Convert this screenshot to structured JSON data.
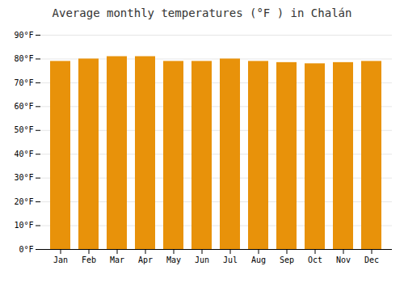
{
  "chart_data": {
    "type": "bar",
    "title": "Average monthly temperatures (°F ) in Chalán",
    "categories": [
      "Jan",
      "Feb",
      "Mar",
      "Apr",
      "May",
      "Jun",
      "Jul",
      "Aug",
      "Sep",
      "Oct",
      "Nov",
      "Dec"
    ],
    "values": [
      79.0,
      80.0,
      81.0,
      81.0,
      79.0,
      79.0,
      80.0,
      79.0,
      78.5,
      78.0,
      78.5,
      79.0
    ],
    "color": "#E8920A",
    "ylim": [
      0,
      90
    ],
    "yticks": [
      {
        "value": 0,
        "label": "0°F"
      },
      {
        "value": 10,
        "label": "10°F"
      },
      {
        "value": 20,
        "label": "20°F"
      },
      {
        "value": 30,
        "label": "30°F"
      },
      {
        "value": 40,
        "label": "40°F"
      },
      {
        "value": 50,
        "label": "50°F"
      },
      {
        "value": 60,
        "label": "60°F"
      },
      {
        "value": 70,
        "label": "70°F"
      },
      {
        "value": 80,
        "label": "80°F"
      },
      {
        "value": 90,
        "label": "90°F"
      }
    ],
    "grid": true
  }
}
